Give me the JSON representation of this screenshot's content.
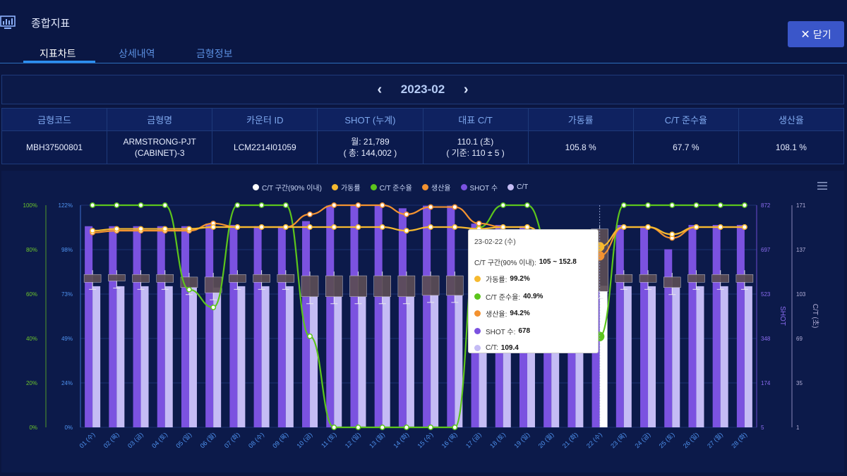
{
  "header": {
    "title": "종합지표",
    "close_label": "닫기",
    "tabs": [
      {
        "label": "지표차트",
        "active": true
      },
      {
        "label": "상세내역",
        "active": false
      },
      {
        "label": "금형정보",
        "active": false
      }
    ]
  },
  "period": {
    "month": "2023-02",
    "prev_icon": "chevron-left-icon",
    "next_icon": "chevron-right-icon"
  },
  "info_table": {
    "headers": [
      "금형코드",
      "금형명",
      "카운터 ID",
      "SHOT (누계)",
      "대표 C/T",
      "가동률",
      "C/T 준수율",
      "생산율"
    ],
    "row": {
      "code": "MBH37500801",
      "name_line1": "ARMSTRONG-PJT",
      "name_line2": "(CABINET)-3",
      "counter_id": "LCM2214I01059",
      "shot_line1": "월: 21,789",
      "shot_line2": "( 총: 144,002 )",
      "ct_line1": "110.1 (초)",
      "ct_line2": "( 기준: 110 ± 5 )",
      "uptime": "105.8 %",
      "ct_compliance": "67.7 %",
      "production": "108.1 %"
    }
  },
  "colors": {
    "uptime": "#f6b92f",
    "compliance": "#5cc51c",
    "production": "#f39230",
    "shot": "#7b52e0",
    "ct": "#c5bcf5",
    "ctrange": "#ffffff"
  },
  "chart_data": {
    "type": "bar",
    "legend": [
      "C/T 구간(90% 이내)",
      "가동률",
      "C/T 준수율",
      "생산율",
      "SHOT 수",
      "C/T"
    ],
    "categories": [
      "01 (수)",
      "02 (목)",
      "03 (금)",
      "04 (토)",
      "05 (일)",
      "06 (월)",
      "07 (화)",
      "08 (수)",
      "09 (목)",
      "10 (금)",
      "11 (토)",
      "12 (일)",
      "13 (월)",
      "14 (화)",
      "15 (수)",
      "16 (목)",
      "17 (금)",
      "18 (토)",
      "19 (일)",
      "20 (월)",
      "21 (화)",
      "22 (수)",
      "23 (목)",
      "24 (금)",
      "25 (토)",
      "26 (일)",
      "27 (월)",
      "28 (화)"
    ],
    "axes": {
      "percent_left": {
        "ticks": [
          "0%",
          "20%",
          "40%",
          "60%",
          "80%",
          "100%"
        ],
        "range": [
          0,
          100
        ]
      },
      "percent_inner": {
        "ticks": [
          "0%",
          "24%",
          "49%",
          "73%",
          "98%",
          "122%"
        ],
        "range": [
          0,
          122
        ]
      },
      "shot": {
        "label": "SHOT",
        "ticks": [
          "5",
          "174",
          "348",
          "523",
          "697",
          "872"
        ],
        "range": [
          5,
          872
        ]
      },
      "ct": {
        "label": "C/T (초)",
        "ticks": [
          "1",
          "35",
          "69",
          "103",
          "137",
          "171"
        ],
        "range": [
          1,
          171
        ]
      }
    },
    "series": [
      {
        "name": "SHOT 수",
        "type": "bar",
        "axis": "shot",
        "values": [
          790,
          790,
          790,
          790,
          790,
          800,
          795,
          790,
          790,
          810,
          870,
          870,
          870,
          860,
          870,
          870,
          800,
          795,
          790,
          690,
          690,
          678,
          795,
          790,
          700,
          795,
          795,
          795
        ]
      },
      {
        "name": "C/T",
        "type": "bar",
        "axis": "ct",
        "values": [
          109,
          109,
          109,
          109,
          108,
          108,
          109,
          109,
          109,
          101,
          101,
          101,
          101,
          101,
          102,
          102,
          105,
          108,
          109,
          109,
          109,
          109.4,
          109,
          109,
          108,
          109,
          109,
          109
        ]
      },
      {
        "name": "C/T 구간(90% 이내)",
        "type": "box",
        "axis": "ct",
        "ranges": [
          [
            112,
            118
          ],
          [
            113,
            118
          ],
          [
            112,
            118
          ],
          [
            112,
            118
          ],
          [
            108,
            116
          ],
          [
            104,
            116
          ],
          [
            112,
            118
          ],
          [
            112,
            118
          ],
          [
            112,
            118
          ],
          [
            101,
            117
          ],
          [
            101,
            117
          ],
          [
            101,
            117
          ],
          [
            101,
            117
          ],
          [
            101,
            117
          ],
          [
            102,
            117
          ],
          [
            102,
            117
          ],
          [
            105,
            115
          ],
          [
            112,
            118
          ],
          [
            112,
            118
          ],
          [
            112,
            118
          ],
          [
            112,
            118
          ],
          [
            105,
            152.8
          ],
          [
            112,
            118
          ],
          [
            112,
            118
          ],
          [
            108,
            116
          ],
          [
            112,
            118
          ],
          [
            112,
            118
          ],
          [
            112,
            118
          ]
        ]
      },
      {
        "name": "가동률",
        "type": "line",
        "axis": "percent_inner",
        "values": [
          108,
          109,
          109,
          109,
          109,
          110,
          110,
          110,
          110,
          110,
          110,
          110,
          110,
          108,
          110,
          110,
          109,
          110,
          110,
          102,
          96,
          99.2,
          110,
          110,
          106,
          110,
          110,
          110
        ]
      },
      {
        "name": "C/T 준수율",
        "type": "line",
        "axis": "percent_left",
        "values": [
          100,
          100,
          100,
          100,
          62,
          54,
          100,
          100,
          100,
          41,
          0,
          0,
          0,
          0,
          0,
          0,
          90,
          100,
          100,
          80,
          60,
          40.9,
          100,
          100,
          100,
          100,
          100,
          100
        ]
      },
      {
        "name": "생산율",
        "type": "line",
        "axis": "percent_inner",
        "values": [
          107,
          108,
          108,
          108,
          108,
          112,
          110,
          110,
          110,
          117,
          122,
          122,
          122,
          117,
          121,
          121,
          112,
          110,
          110,
          102,
          95,
          94.2,
          110,
          110,
          104,
          110,
          110,
          110
        ]
      }
    ]
  },
  "tooltip": {
    "date": "23-02-22 (수)",
    "items": [
      {
        "label": "C/T 구간(90% 이내):",
        "value": "105 ~ 152.8"
      },
      {
        "label": "가동률:",
        "value": "99.2%"
      },
      {
        "label": "C/T 준수율:",
        "value": "40.9%"
      },
      {
        "label": "생산율:",
        "value": "94.2%"
      },
      {
        "label": "SHOT 수:",
        "value": "678"
      },
      {
        "label": "C/T:",
        "value": "109.4"
      }
    ]
  }
}
